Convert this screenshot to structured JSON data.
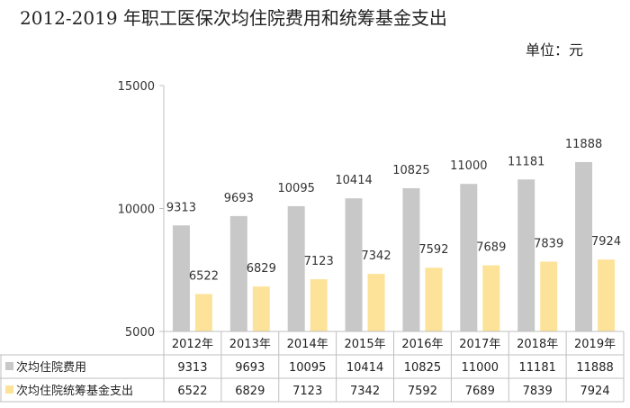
{
  "title": "2012-2019 年职工医保次均住院费用和统筹基金支出",
  "unit_label": "单位：元",
  "colors": {
    "series1": "#c8c8c8",
    "series2": "#fde29a",
    "grid": "#bfbfbf"
  },
  "chart_data": {
    "type": "bar",
    "title": "2012-2019 年职工医保次均住院费用和统筹基金支出",
    "xlabel": "",
    "ylabel": "",
    "ylim": [
      5000,
      15000
    ],
    "yticks": [
      5000,
      10000,
      15000
    ],
    "categories": [
      "2012年",
      "2013年",
      "2014年",
      "2015年",
      "2016年",
      "2017年",
      "2018年",
      "2019年"
    ],
    "series": [
      {
        "name": "次均住院费用",
        "values": [
          9313,
          9693,
          10095,
          10414,
          10825,
          11000,
          11181,
          11888
        ]
      },
      {
        "name": "次均住院统筹基金支出",
        "values": [
          6522,
          6829,
          7123,
          7342,
          7592,
          7689,
          7839,
          7924
        ]
      }
    ],
    "data_table": true,
    "legend": "in-table"
  }
}
